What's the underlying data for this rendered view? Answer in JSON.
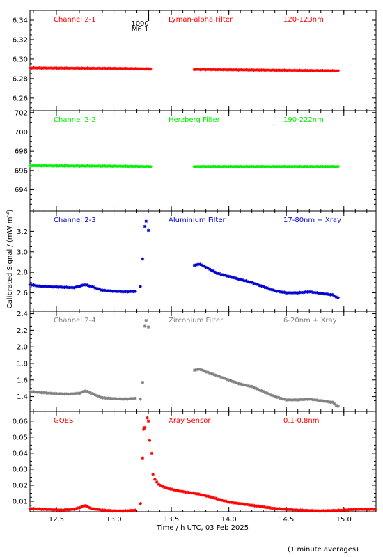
{
  "chart_data": {
    "type": "scatter",
    "xlabel": "Time / h UTC, 03 Feb 2025",
    "ylabel": "Calibrated Signal / (mW m",
    "ylabel_sup": "-2",
    "ylabel_close": ")",
    "footnote": "(1 minute averages)",
    "xlim": [
      12.27,
      15.28
    ],
    "xticks": [
      12.5,
      13.0,
      13.5,
      14.0,
      14.5,
      15.0
    ],
    "xtick_labels": [
      "12.5",
      "13.0",
      "13.5",
      "14.0",
      "14.5",
      "15.0"
    ],
    "event": {
      "x": 13.3,
      "label1": "1000",
      "label2": "M6.1"
    },
    "panels": [
      {
        "name": "channel-2-1",
        "channel": "Channel 2-1",
        "filter": "Lyman-alpha Filter",
        "band": "120-123nm",
        "color": "#ff0000",
        "ylim": [
          6.247,
          6.35
        ],
        "yticks": [
          6.26,
          6.28,
          6.3,
          6.32,
          6.34
        ],
        "ytick_labels": [
          "6.26",
          "6.28",
          "6.30",
          "6.32",
          "6.34"
        ],
        "segments": [
          {
            "x": [
              12.27,
              13.0,
              13.32
            ],
            "y": [
              6.291,
              6.2905,
              6.29
            ]
          },
          {
            "x": [
              13.7,
              14.5,
              14.95
            ],
            "y": [
              6.2895,
              6.2885,
              6.288
            ]
          }
        ],
        "outliers": {
          "x": [],
          "y": []
        }
      },
      {
        "name": "channel-2-2",
        "channel": "Channel 2-2",
        "filter": "Herzberg Filter",
        "band": "190-222nm",
        "color": "#00ee00",
        "ylim": [
          691.8,
          702.2
        ],
        "yticks": [
          694,
          696,
          698,
          700,
          702
        ],
        "ytick_labels": [
          "694",
          "696",
          "698",
          "700",
          "702"
        ],
        "segments": [
          {
            "x": [
              12.27,
              13.0,
              13.32
            ],
            "y": [
              696.5,
              696.45,
              696.4
            ]
          },
          {
            "x": [
              13.7,
              14.5,
              14.95
            ],
            "y": [
              696.4,
              696.4,
              696.4
            ]
          }
        ],
        "outliers": {
          "x": [],
          "y": []
        }
      },
      {
        "name": "channel-2-3",
        "channel": "Channel 2-3",
        "filter": "Aluminium Filter",
        "band": "17-80nm + Xray",
        "color": "#0000cc",
        "ylim": [
          2.42,
          3.4
        ],
        "yticks": [
          2.4,
          2.6,
          2.8,
          3.0,
          3.2
        ],
        "ytick_labels": [
          "2.4",
          "2.6",
          "2.8",
          "3.0",
          "3.2"
        ],
        "segments": [
          {
            "x": [
              12.27,
              12.35,
              12.45,
              12.55,
              12.65,
              12.7,
              12.75,
              12.82,
              12.9,
              13.0,
              13.1,
              13.2
            ],
            "y": [
              2.68,
              2.665,
              2.66,
              2.655,
              2.65,
              2.665,
              2.68,
              2.655,
              2.625,
              2.615,
              2.61,
              2.615
            ]
          },
          {
            "x": [
              13.7,
              13.75,
              13.8,
              13.9,
              14.0,
              14.1,
              14.2,
              14.3,
              14.4,
              14.5,
              14.6,
              14.7,
              14.8,
              14.9,
              14.95
            ],
            "y": [
              2.87,
              2.88,
              2.85,
              2.79,
              2.76,
              2.73,
              2.7,
              2.66,
              2.62,
              2.6,
              2.6,
              2.61,
              2.595,
              2.58,
              2.55
            ]
          }
        ],
        "outliers": {
          "x": [
            13.23,
            13.25,
            13.27,
            13.28,
            13.3
          ],
          "y": [
            2.66,
            2.93,
            3.25,
            3.3,
            3.21
          ]
        }
      },
      {
        "name": "channel-2-4",
        "channel": "Channel 2-4",
        "filter": "Zirconium Filter",
        "band": "6-20nm + Xray",
        "color": "#808080",
        "ylim": [
          1.22,
          2.43
        ],
        "yticks": [
          1.4,
          1.6,
          1.8,
          2.0,
          2.2,
          2.4
        ],
        "ytick_labels": [
          "1.4",
          "1.6",
          "1.8",
          "2.0",
          "2.2",
          "2.4"
        ],
        "segments": [
          {
            "x": [
              12.27,
              12.4,
              12.5,
              12.6,
              12.7,
              12.75,
              12.82,
              12.9,
              13.0,
              13.1,
              13.2
            ],
            "y": [
              1.46,
              1.445,
              1.435,
              1.43,
              1.44,
              1.47,
              1.43,
              1.385,
              1.375,
              1.37,
              1.38
            ]
          },
          {
            "x": [
              13.7,
              13.75,
              13.8,
              13.9,
              14.0,
              14.1,
              14.2,
              14.3,
              14.4,
              14.5,
              14.6,
              14.7,
              14.8,
              14.9,
              14.95
            ],
            "y": [
              1.72,
              1.73,
              1.7,
              1.65,
              1.6,
              1.55,
              1.52,
              1.46,
              1.4,
              1.36,
              1.36,
              1.37,
              1.35,
              1.33,
              1.28
            ]
          }
        ],
        "outliers": {
          "x": [
            13.23,
            13.25,
            13.27,
            13.28,
            13.3
          ],
          "y": [
            1.37,
            1.57,
            2.25,
            2.32,
            2.24
          ]
        }
      },
      {
        "name": "goes",
        "channel": "GOES",
        "filter": "Xray Sensor",
        "band": "0.1-0.8nm",
        "color": "#ff0000",
        "ylim": [
          0.0035,
          0.066
        ],
        "yticks": [
          0.01,
          0.02,
          0.03,
          0.04,
          0.05,
          0.06
        ],
        "ytick_labels": [
          "0.01",
          "0.02",
          "0.03",
          "0.04",
          "0.05",
          "0.06"
        ],
        "segments": [
          {
            "x": [
              12.27,
              12.4,
              12.55,
              12.65,
              12.72,
              12.75,
              12.8,
              12.9,
              13.0,
              13.1,
              13.2
            ],
            "y": [
              0.0055,
              0.005,
              0.0045,
              0.005,
              0.0065,
              0.0075,
              0.0055,
              0.0045,
              0.004,
              0.004,
              0.0045
            ]
          },
          {
            "x": [
              13.34,
              13.36,
              13.4,
              13.45,
              13.5,
              13.6,
              13.7,
              13.8,
              13.9,
              14.0,
              14.1,
              14.2,
              14.4,
              14.6,
              14.8,
              15.0,
              15.1,
              15.28
            ],
            "y": [
              0.027,
              0.023,
              0.02,
              0.0185,
              0.0175,
              0.016,
              0.015,
              0.0135,
              0.0115,
              0.0095,
              0.0085,
              0.0075,
              0.0055,
              0.0045,
              0.004,
              0.0045,
              0.005,
              0.005
            ]
          }
        ],
        "outliers": {
          "x": [
            13.23,
            13.25,
            13.26,
            13.27,
            13.29,
            13.3,
            13.31,
            13.33
          ],
          "y": [
            0.0085,
            0.037,
            0.055,
            0.056,
            0.062,
            0.06,
            0.048,
            0.04
          ]
        }
      }
    ]
  }
}
